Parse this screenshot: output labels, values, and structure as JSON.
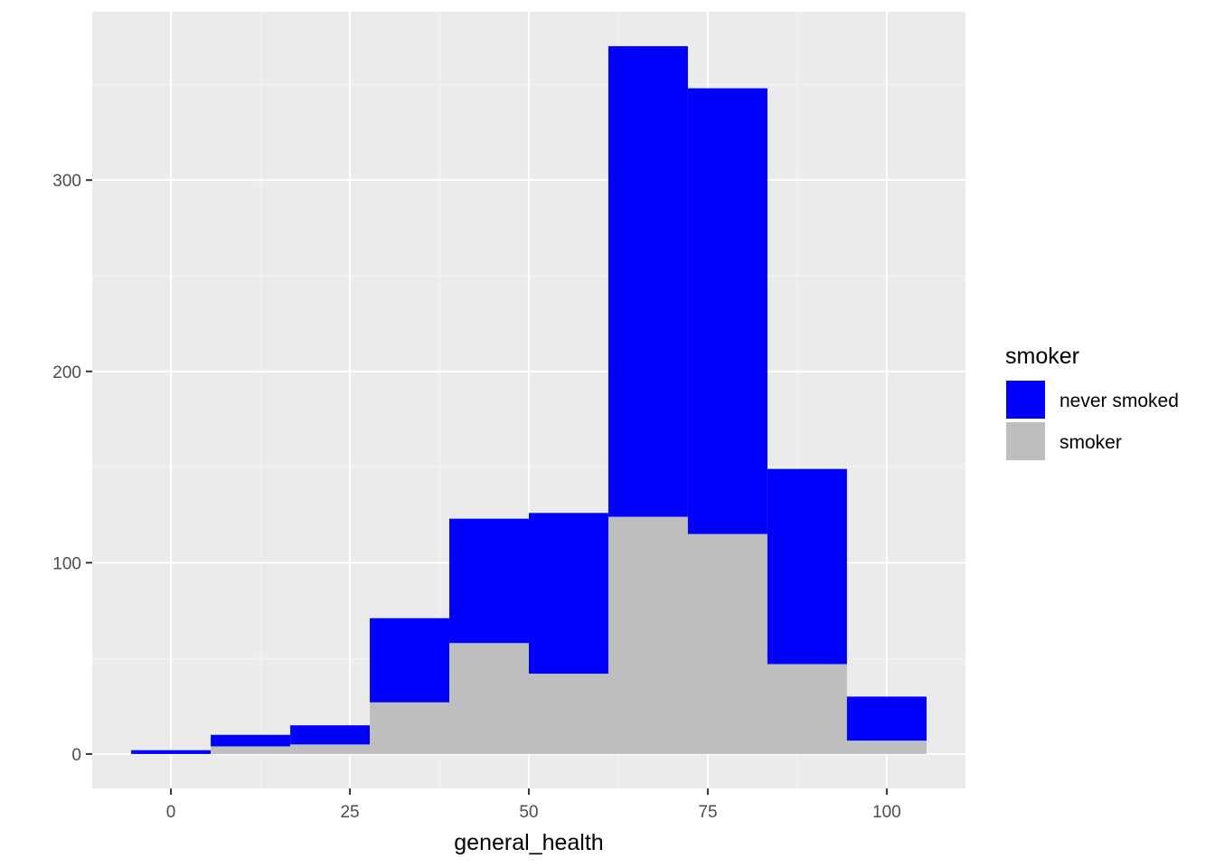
{
  "chart_data": {
    "type": "bar",
    "stacked": true,
    "title": "",
    "xlabel": "general_health",
    "ylabel": "",
    "xlim": [
      -11,
      111
    ],
    "ylim": [
      -18,
      388
    ],
    "x_ticks": [
      0,
      25,
      50,
      75,
      100
    ],
    "y_ticks": [
      0,
      100,
      200,
      300
    ],
    "bins": [
      {
        "x_start": -5.56,
        "x_end": 5.56
      },
      {
        "x_start": 5.56,
        "x_end": 16.67
      },
      {
        "x_start": 16.67,
        "x_end": 27.78
      },
      {
        "x_start": 27.78,
        "x_end": 38.89
      },
      {
        "x_start": 38.89,
        "x_end": 50.0
      },
      {
        "x_start": 50.0,
        "x_end": 61.11
      },
      {
        "x_start": 61.11,
        "x_end": 72.22
      },
      {
        "x_start": 72.22,
        "x_end": 83.33
      },
      {
        "x_start": 83.33,
        "x_end": 94.44
      },
      {
        "x_start": 94.44,
        "x_end": 105.56
      }
    ],
    "series": [
      {
        "name": "smoker",
        "color": "#BEBEBE",
        "values": [
          0,
          4,
          5,
          27,
          58,
          42,
          124,
          115,
          47,
          7
        ]
      },
      {
        "name": "never smoked",
        "color": "#0000FF",
        "values": [
          2,
          6,
          10,
          44,
          65,
          84,
          246,
          233,
          102,
          23
        ]
      }
    ],
    "grid": true,
    "legend": {
      "title": "smoker",
      "placement": "right",
      "items": [
        {
          "label": "never smoked",
          "color": "#0000FF"
        },
        {
          "label": "smoker",
          "color": "#BEBEBE"
        }
      ]
    },
    "colors": {
      "panel_background": "#EBEBEB",
      "grid_major": "#FFFFFF",
      "grid_minor": "#F5F5F5"
    }
  }
}
